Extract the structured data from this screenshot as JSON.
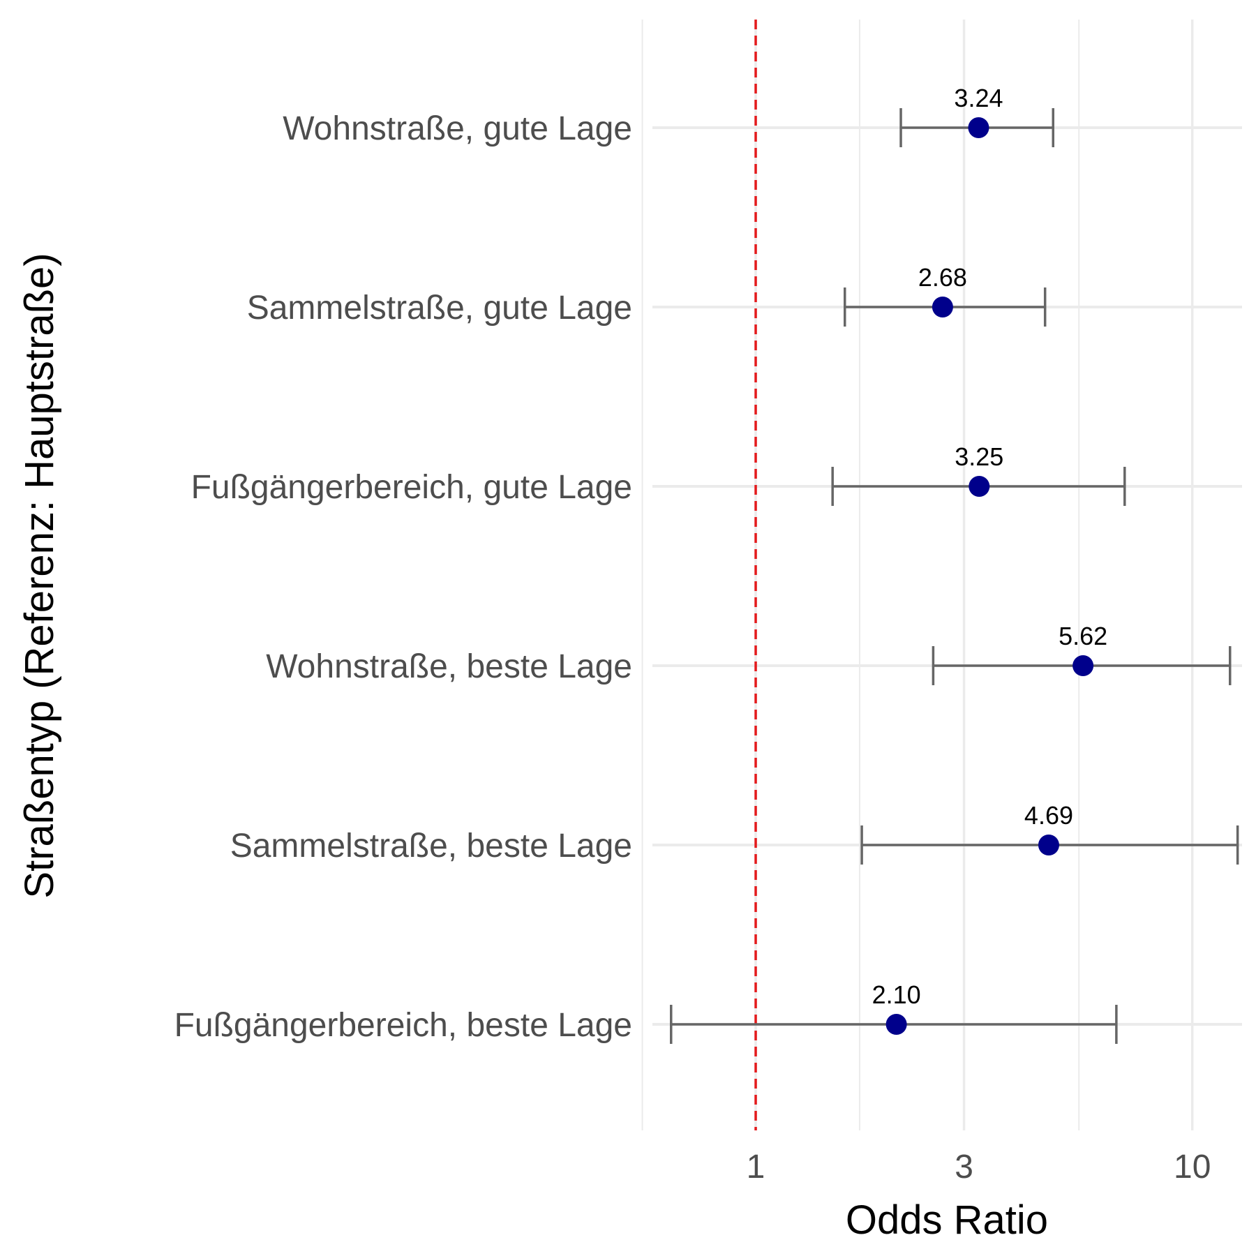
{
  "chart_data": {
    "type": "scatter",
    "subtype": "forest-plot",
    "xlabel": "Odds Ratio",
    "ylabel": "Straßentyp (Referenz: Hauptstraße)",
    "xscale": "log",
    "xlim": [
      0.58,
      13.0
    ],
    "xticks": [
      1,
      3,
      10
    ],
    "xtick_labels": [
      "1",
      "3",
      "10"
    ],
    "minor_gridlines_x": [
      0.55,
      1.73,
      5.5
    ],
    "reference_line": {
      "x": 1,
      "style": "dashed",
      "color": "#e41a1c"
    },
    "grid": true,
    "categories": [
      "Wohnstraße, gute Lage",
      "Sammelstraße, gute Lage",
      "Fußgängerbereich, gute Lage",
      "Wohnstraße, beste Lage",
      "Sammelstraße, beste Lage",
      "Fußgängerbereich, beste Lage"
    ],
    "estimates": [
      3.24,
      2.68,
      3.25,
      5.62,
      4.69,
      2.1
    ],
    "estimate_labels": [
      "3.24",
      "2.68",
      "3.25",
      "5.62",
      "4.69",
      "2.10"
    ],
    "ci_lower": [
      2.15,
      1.6,
      1.5,
      2.55,
      1.75,
      0.64
    ],
    "ci_upper": [
      4.8,
      4.6,
      7.0,
      12.2,
      12.7,
      6.7
    ],
    "colors": {
      "point": "#00008b",
      "errorbar": "#666666",
      "grid": "#ebebeb",
      "reference": "#e41a1c"
    }
  }
}
